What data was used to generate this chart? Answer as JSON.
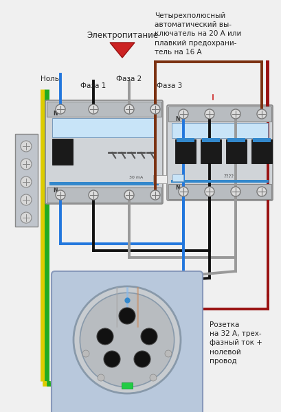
{
  "title": "Электропитание",
  "label_nol": "Ноль",
  "label_faza1": "Фаза 1",
  "label_faza2": "Фаза 2",
  "label_faza3": "Фаза 3",
  "annotation_right": "Четырехполюсный\nавтоматический вы-\nключатель на 20 А или\nплавкий предохрани-\nтель на 16 А",
  "annotation_bottom": "Розетка\nна 32 А, трех-\nфазный ток +\nнолевой\nпровод",
  "bg_color": "#f0f0f0",
  "wire_blue": "#2277dd",
  "wire_black": "#111111",
  "wire_gray": "#999999",
  "wire_brown": "#7a3010",
  "wire_dark_red": "#991111",
  "wire_red": "#cc2222",
  "wire_yellow": "#ddcc00",
  "wire_green": "#22aa22",
  "breaker1_color": "#d0d4d8",
  "breaker2_color": "#d0d4d8",
  "terminal_color": "#cccccc",
  "socket_bg": "#c0ccdd"
}
